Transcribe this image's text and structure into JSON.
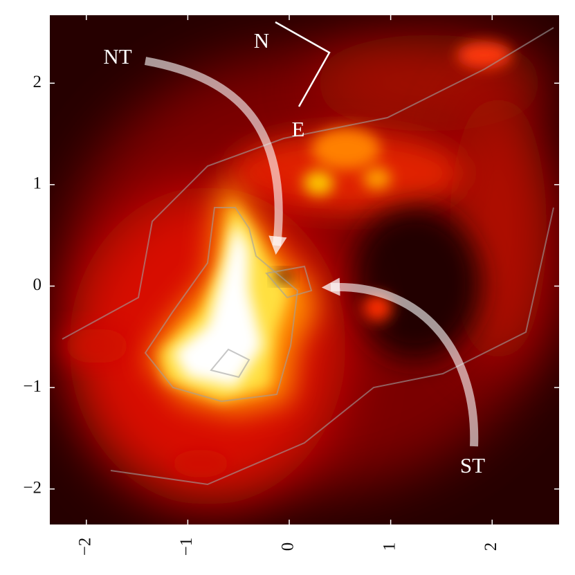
{
  "chart_data": {
    "type": "image",
    "xlim": [
      -2.36,
      2.66
    ],
    "ylim": [
      -2.35,
      2.67
    ],
    "xticks": [
      {
        "value": -2,
        "label": "−2"
      },
      {
        "value": -1,
        "label": "−1"
      },
      0,
      1,
      2
    ],
    "yticks": [
      {
        "value": -2,
        "label": "−2"
      },
      {
        "value": -1,
        "label": "−1"
      },
      0,
      1,
      2
    ],
    "annotations": [
      "NT",
      "ST",
      "N",
      "E"
    ]
  }
}
